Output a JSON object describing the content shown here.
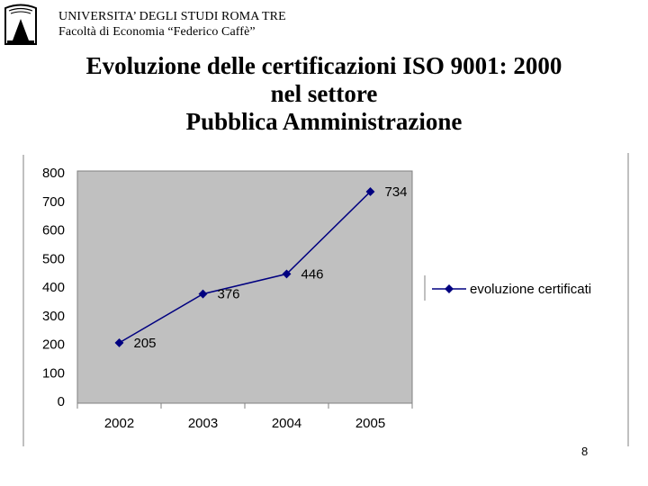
{
  "header": {
    "university": "UNIVERSITA’ DEGLI STUDI ROMA TRE",
    "faculty": "Facoltà di Economia “Federico Caffè”"
  },
  "slide": {
    "title_lines": [
      "Evoluzione delle certificazioni ISO 9001: 2000",
      "nel settore",
      "Pubblica Amministrazione"
    ],
    "page_number": "8"
  },
  "chart_data": {
    "type": "line",
    "categories": [
      "2002",
      "2003",
      "2004",
      "2005"
    ],
    "series": [
      {
        "name": "evoluzione certificati",
        "values": [
          205,
          376,
          446,
          734
        ]
      }
    ],
    "ylim": [
      0,
      800
    ],
    "yticks": [
      0,
      100,
      200,
      300,
      400,
      500,
      600,
      700,
      800
    ],
    "data_labels": [
      "205",
      "376",
      "446",
      "734"
    ],
    "grid": false,
    "legend": "right",
    "plot_background": "#c0c0c0",
    "series_color": "#000080"
  }
}
